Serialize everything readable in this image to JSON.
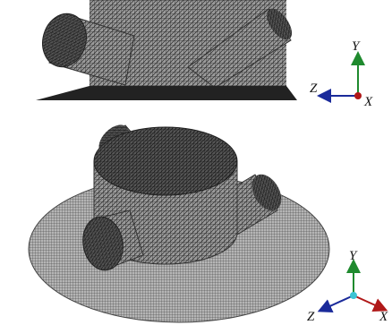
{
  "top_view": {
    "axes": {
      "y": "Y",
      "z": "Z",
      "x": "X"
    }
  },
  "iso_view": {
    "axes": {
      "y": "Y",
      "z": "Z",
      "x": "X"
    }
  }
}
